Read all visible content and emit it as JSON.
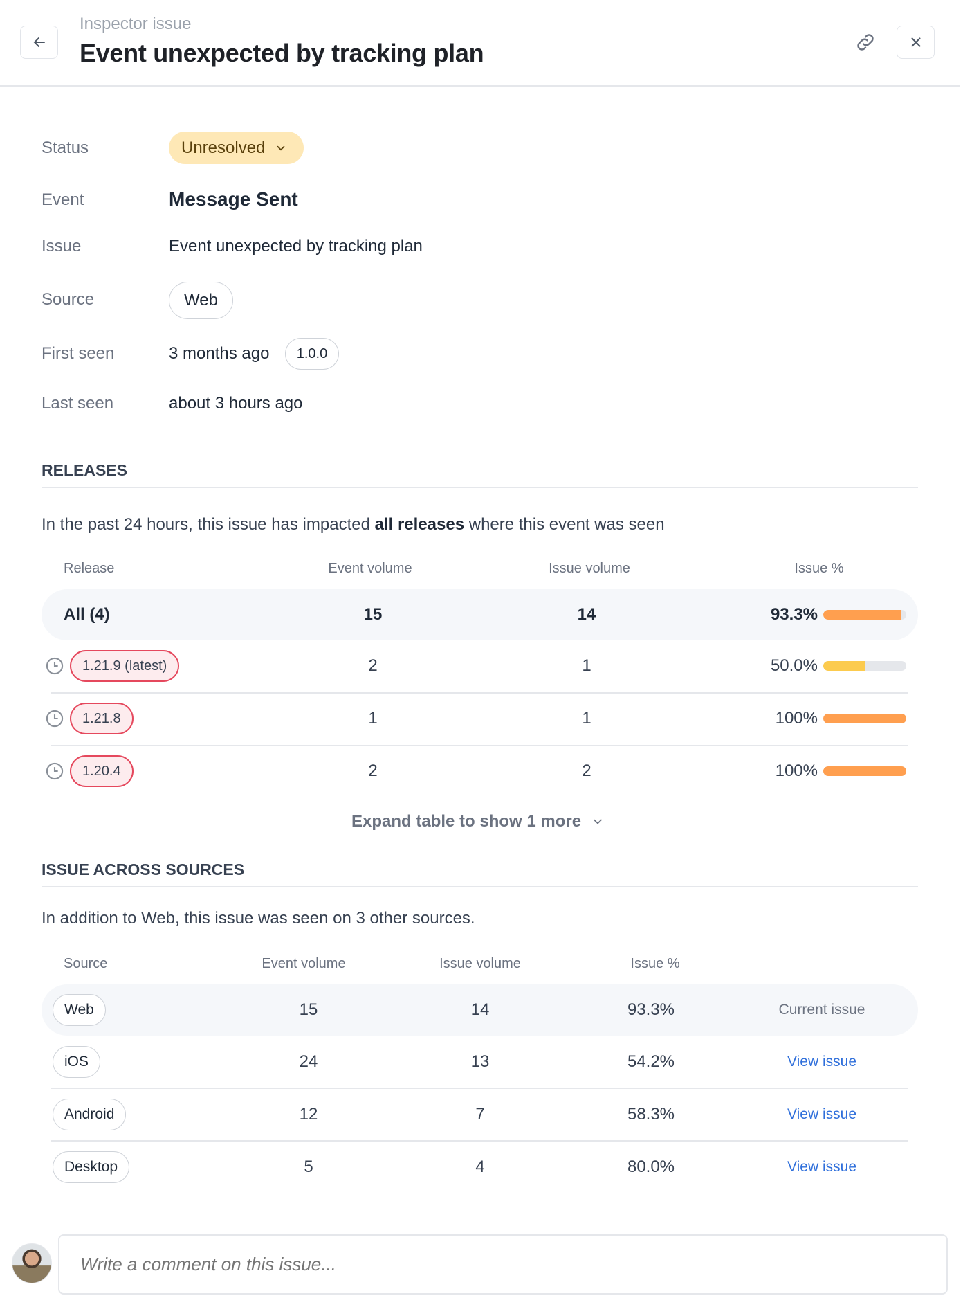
{
  "header": {
    "breadcrumb": "Inspector issue",
    "title": "Event unexpected by tracking plan",
    "back_icon": "arrow-left",
    "link_icon": "link",
    "close_icon": "x"
  },
  "details": {
    "status_label": "Status",
    "status_value": "Unresolved",
    "event_label": "Event",
    "event_value": "Message Sent",
    "issue_label": "Issue",
    "issue_value": "Event unexpected by tracking plan",
    "source_label": "Source",
    "source_value": "Web",
    "first_seen_label": "First seen",
    "first_seen_value": "3 months ago",
    "first_seen_version": "1.0.0",
    "last_seen_label": "Last seen",
    "last_seen_value": "about 3 hours ago"
  },
  "releases": {
    "heading": "RELEASES",
    "summary_pre": "In the past 24 hours, this issue has impacted ",
    "summary_bold": "all releases",
    "summary_post": " where this event was seen",
    "columns": [
      "Release",
      "Event volume",
      "Issue volume",
      "Issue %"
    ],
    "all_row": {
      "label": "All (4)",
      "event_volume": "15",
      "issue_volume": "14",
      "issue_pct": "93.3%",
      "pct": 93.3
    },
    "rows": [
      {
        "release": "1.21.9 (latest)",
        "event_volume": "2",
        "issue_volume": "1",
        "issue_pct": "50.0%",
        "pct": 50
      },
      {
        "release": "1.21.8",
        "event_volume": "1",
        "issue_volume": "1",
        "issue_pct": "100%",
        "pct": 100
      },
      {
        "release": "1.20.4",
        "event_volume": "2",
        "issue_volume": "2",
        "issue_pct": "100%",
        "pct": 100
      }
    ],
    "expand_label": "Expand table to show 1 more"
  },
  "sources": {
    "heading": "ISSUE ACROSS SOURCES",
    "summary": "In addition to Web, this issue was seen on 3 other sources.",
    "columns": [
      "Source",
      "Event volume",
      "Issue volume",
      "Issue %"
    ],
    "rows": [
      {
        "source": "Web",
        "event_volume": "15",
        "issue_volume": "14",
        "issue_pct": "93.3%",
        "action": "Current issue",
        "current": true
      },
      {
        "source": "iOS",
        "event_volume": "24",
        "issue_volume": "13",
        "issue_pct": "54.2%",
        "action": "View issue"
      },
      {
        "source": "Android",
        "event_volume": "12",
        "issue_volume": "7",
        "issue_pct": "58.3%",
        "action": "View issue"
      },
      {
        "source": "Desktop",
        "event_volume": "5",
        "issue_volume": "4",
        "issue_pct": "80.0%",
        "action": "View issue"
      }
    ]
  },
  "comment": {
    "placeholder": "Write a comment on this issue..."
  },
  "colors": {
    "orange": "#ff9f4f",
    "yellow": "#fccb4e",
    "link": "#2f6fdb",
    "status_bg": "#fee8b6",
    "release_badge_border": "#e5485d"
  }
}
